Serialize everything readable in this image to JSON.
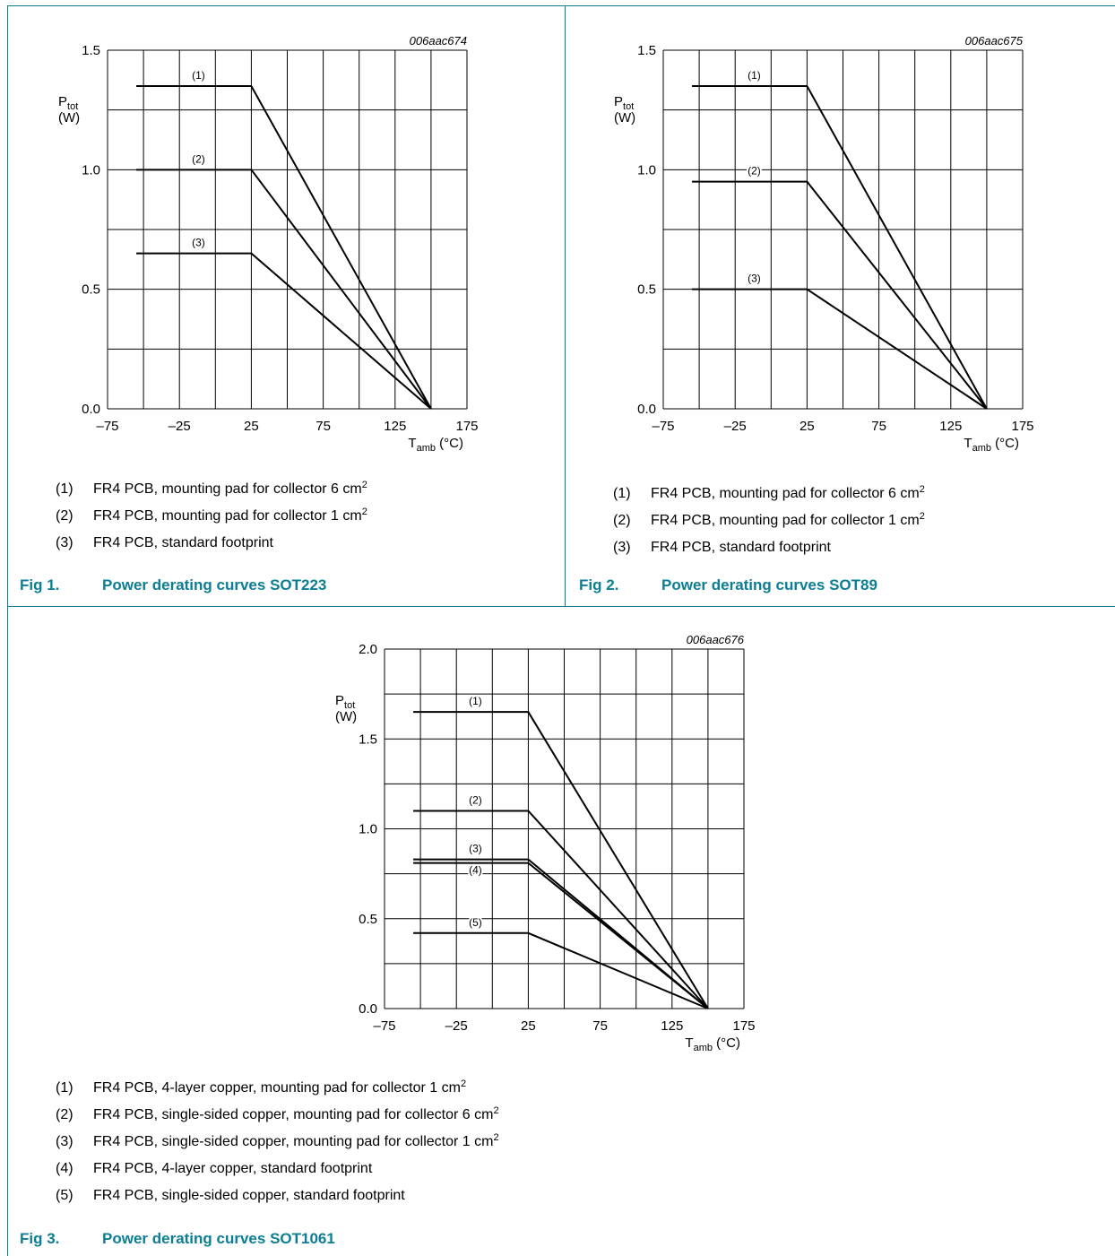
{
  "colors": {
    "accent": "#0b7e93",
    "grid": "#000000",
    "curve": "#000000"
  },
  "figures": [
    {
      "figure_number": "Fig 1.",
      "caption": "Power derating curves SOT223",
      "code": "006aac674",
      "y_label_main": "P",
      "y_label_sub": "tot",
      "y_unit": "(W)",
      "x_label_main": "T",
      "x_label_sub": "amb",
      "x_unit": "(°C)",
      "notes": [
        {
          "num": "(1)",
          "text": "FR4 PCB, mounting pad for collector 6 cm",
          "sup": "2"
        },
        {
          "num": "(2)",
          "text": "FR4 PCB, mounting pad for collector 1 cm",
          "sup": "2"
        },
        {
          "num": "(3)",
          "text": "FR4 PCB, standard footprint",
          "sup": ""
        }
      ]
    },
    {
      "figure_number": "Fig 2.",
      "caption": "Power derating curves SOT89",
      "code": "006aac675",
      "y_label_main": "P",
      "y_label_sub": "tot",
      "y_unit": "(W)",
      "x_label_main": "T",
      "x_label_sub": "amb",
      "x_unit": "(°C)",
      "notes": [
        {
          "num": "(1)",
          "text": "FR4 PCB, mounting pad for collector 6 cm",
          "sup": "2"
        },
        {
          "num": "(2)",
          "text": "FR4 PCB, mounting pad for collector 1 cm",
          "sup": "2"
        },
        {
          "num": "(3)",
          "text": "FR4 PCB, standard footprint",
          "sup": ""
        }
      ]
    },
    {
      "figure_number": "Fig 3.",
      "caption": "Power derating curves SOT1061",
      "code": "006aac676",
      "y_label_main": "P",
      "y_label_sub": "tot",
      "y_unit": "(W)",
      "x_label_main": "T",
      "x_label_sub": "amb",
      "x_unit": "(°C)",
      "notes": [
        {
          "num": "(1)",
          "text": "FR4 PCB, 4-layer copper, mounting pad for collector 1 cm",
          "sup": "2"
        },
        {
          "num": "(2)",
          "text": "FR4 PCB, single-sided copper, mounting pad for collector 6 cm",
          "sup": "2"
        },
        {
          "num": "(3)",
          "text": "FR4 PCB, single-sided copper, mounting pad for collector 1 cm",
          "sup": "2"
        },
        {
          "num": "(4)",
          "text": "FR4 PCB, 4-layer copper, standard footprint",
          "sup": ""
        },
        {
          "num": "(5)",
          "text": "FR4 PCB, single-sided copper, standard footprint",
          "sup": ""
        }
      ]
    }
  ],
  "chart_data": [
    {
      "type": "line",
      "xlim": [
        -75,
        175
      ],
      "ylim": [
        0,
        1.5
      ],
      "x_ticks": [
        "–75",
        "–25",
        "25",
        "75",
        "125",
        "175"
      ],
      "y_ticks": [
        "0.0",
        "0.5",
        "1.0",
        "1.5"
      ],
      "x_tick_values": [
        -75,
        -25,
        25,
        75,
        125,
        175
      ],
      "y_tick_values": [
        0,
        0.5,
        1.0,
        1.5
      ],
      "grid": true,
      "series": [
        {
          "name": "(1)",
          "x": [
            -55,
            25,
            150
          ],
          "y": [
            1.35,
            1.35,
            0
          ]
        },
        {
          "name": "(2)",
          "x": [
            -55,
            25,
            150
          ],
          "y": [
            1.0,
            1.0,
            0
          ]
        },
        {
          "name": "(3)",
          "x": [
            -55,
            25,
            150
          ],
          "y": [
            0.65,
            0.65,
            0
          ]
        }
      ]
    },
    {
      "type": "line",
      "xlim": [
        -75,
        175
      ],
      "ylim": [
        0,
        1.5
      ],
      "x_ticks": [
        "–75",
        "–25",
        "25",
        "75",
        "125",
        "175"
      ],
      "y_ticks": [
        "0.0",
        "0.5",
        "1.0",
        "1.5"
      ],
      "x_tick_values": [
        -75,
        -25,
        25,
        75,
        125,
        175
      ],
      "y_tick_values": [
        0,
        0.5,
        1.0,
        1.5
      ],
      "grid": true,
      "series": [
        {
          "name": "(1)",
          "x": [
            -55,
            25,
            150
          ],
          "y": [
            1.35,
            1.35,
            0
          ]
        },
        {
          "name": "(2)",
          "x": [
            -55,
            25,
            150
          ],
          "y": [
            0.95,
            0.95,
            0
          ]
        },
        {
          "name": "(3)",
          "x": [
            -55,
            25,
            150
          ],
          "y": [
            0.5,
            0.5,
            0
          ]
        }
      ]
    },
    {
      "type": "line",
      "xlim": [
        -75,
        175
      ],
      "ylim": [
        0,
        2.0
      ],
      "x_ticks": [
        "–75",
        "–25",
        "25",
        "75",
        "125",
        "175"
      ],
      "y_ticks": [
        "0.0",
        "0.5",
        "1.0",
        "1.5",
        "2.0"
      ],
      "x_tick_values": [
        -75,
        -25,
        25,
        75,
        125,
        175
      ],
      "y_tick_values": [
        0,
        0.5,
        1.0,
        1.5,
        2.0
      ],
      "grid": true,
      "series": [
        {
          "name": "(1)",
          "x": [
            -55,
            25,
            150
          ],
          "y": [
            1.65,
            1.65,
            0
          ]
        },
        {
          "name": "(2)",
          "x": [
            -55,
            25,
            150
          ],
          "y": [
            1.1,
            1.1,
            0
          ]
        },
        {
          "name": "(3)",
          "x": [
            -55,
            25,
            150
          ],
          "y": [
            0.83,
            0.83,
            0
          ]
        },
        {
          "name": "(4)",
          "x": [
            -55,
            25,
            150
          ],
          "y": [
            0.81,
            0.81,
            0
          ]
        },
        {
          "name": "(5)",
          "x": [
            -55,
            25,
            150
          ],
          "y": [
            0.42,
            0.42,
            0
          ]
        }
      ]
    }
  ]
}
